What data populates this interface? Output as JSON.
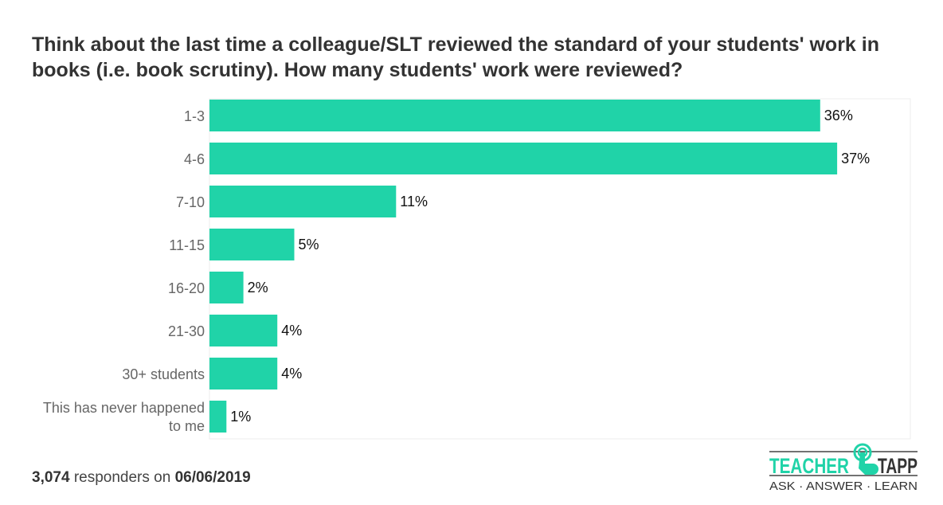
{
  "chart_data": {
    "type": "bar",
    "orientation": "horizontal",
    "title": "Think about the last time a colleague/SLT reviewed the standard of your students' work in books (i.e. book scrutiny). How many students' work were reviewed?",
    "categories": [
      "1-3",
      "4-6",
      "7-10",
      "11-15",
      "16-20",
      "21-30",
      "30+ students",
      "This has never happened to me"
    ],
    "values": [
      36,
      37,
      11,
      5,
      2,
      4,
      4,
      1
    ],
    "labels": [
      "36%",
      "37%",
      "11%",
      "5%",
      "2%",
      "4%",
      "4%",
      "1%"
    ],
    "xlabel": "",
    "ylabel": "",
    "xlim": [
      0,
      41
    ],
    "grid": false,
    "bar_color": "#20d3a8"
  },
  "footer": {
    "count": "3,074",
    "text": " responders on ",
    "date": "06/06/2019"
  },
  "logo": {
    "name": "TEACHER TAPP",
    "tagline": "ASK · ANSWER · LEARN"
  }
}
